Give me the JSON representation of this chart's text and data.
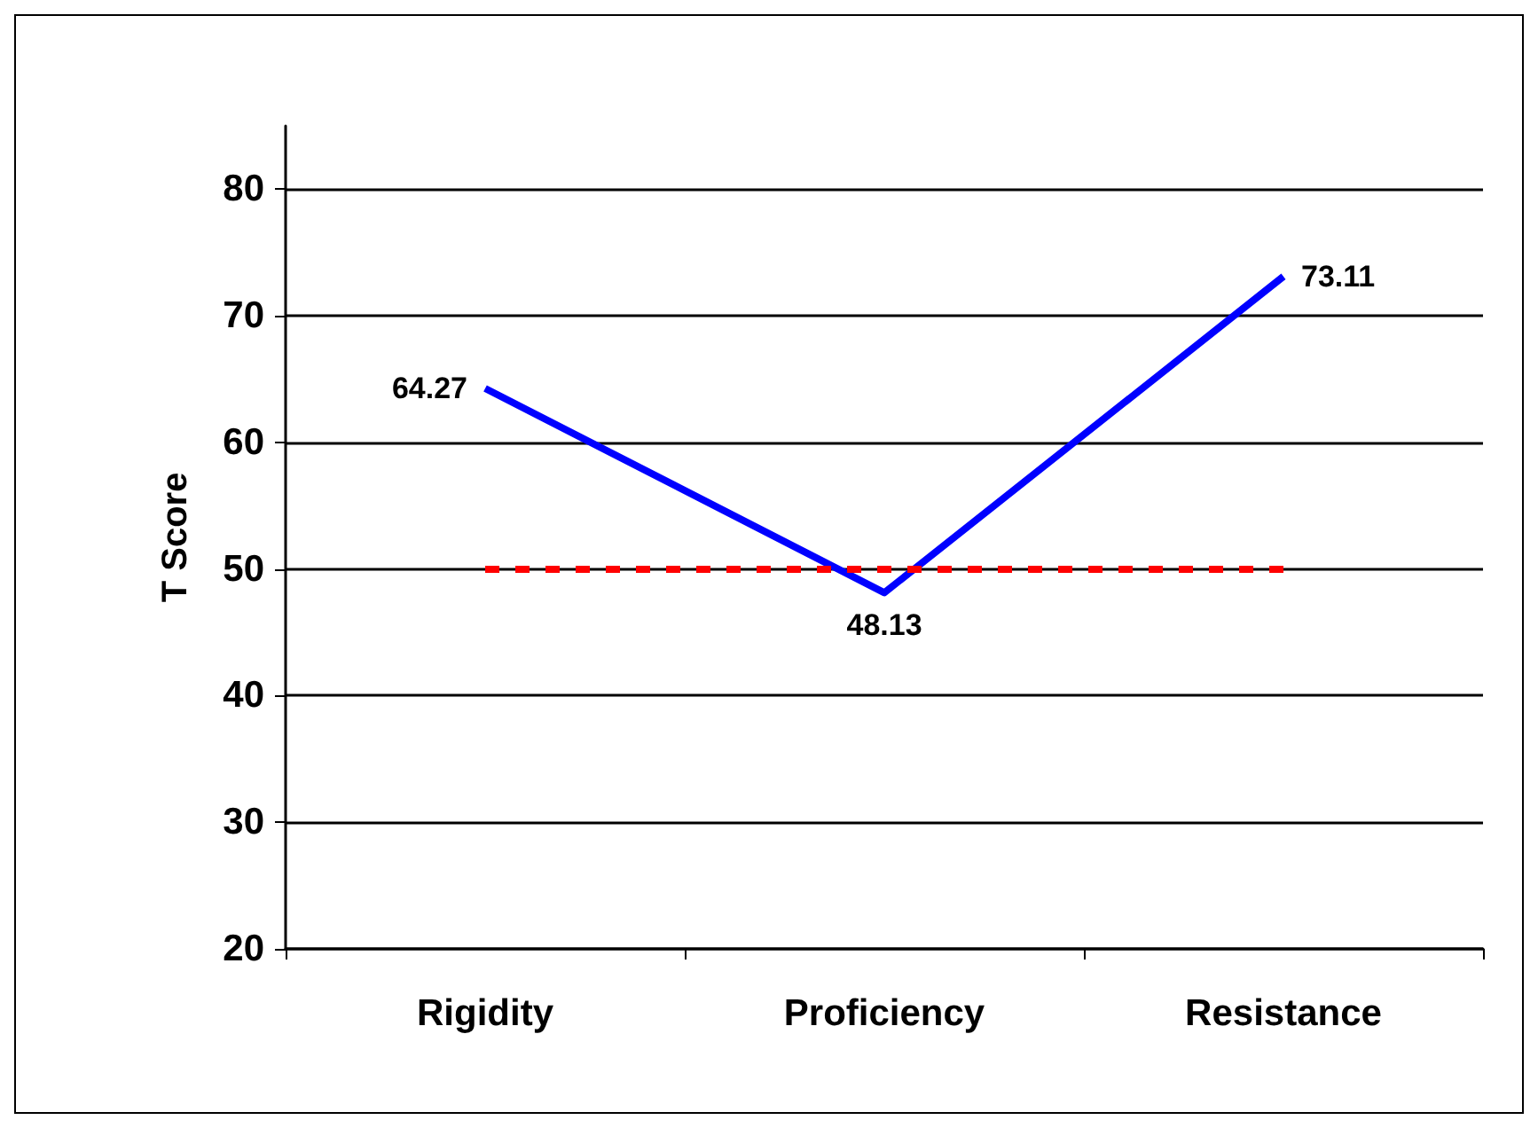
{
  "chart_data": {
    "type": "line",
    "ylabel": "T Score",
    "categories": [
      "Rigidity",
      "Proficiency",
      "Resistance"
    ],
    "series": [
      {
        "color": "#0000ff",
        "values": [
          64.27,
          48.13,
          73.11
        ]
      }
    ],
    "ylim": [
      20,
      85
    ],
    "yticks": [
      20,
      30,
      40,
      50,
      60,
      70,
      80
    ],
    "ref_lines": [
      {
        "axis": "y",
        "value": 50,
        "color": "#ff0000",
        "line_style": "dashed"
      }
    ],
    "data_labels": true,
    "grid": "y",
    "marker": "none",
    "line_style": "solid"
  }
}
